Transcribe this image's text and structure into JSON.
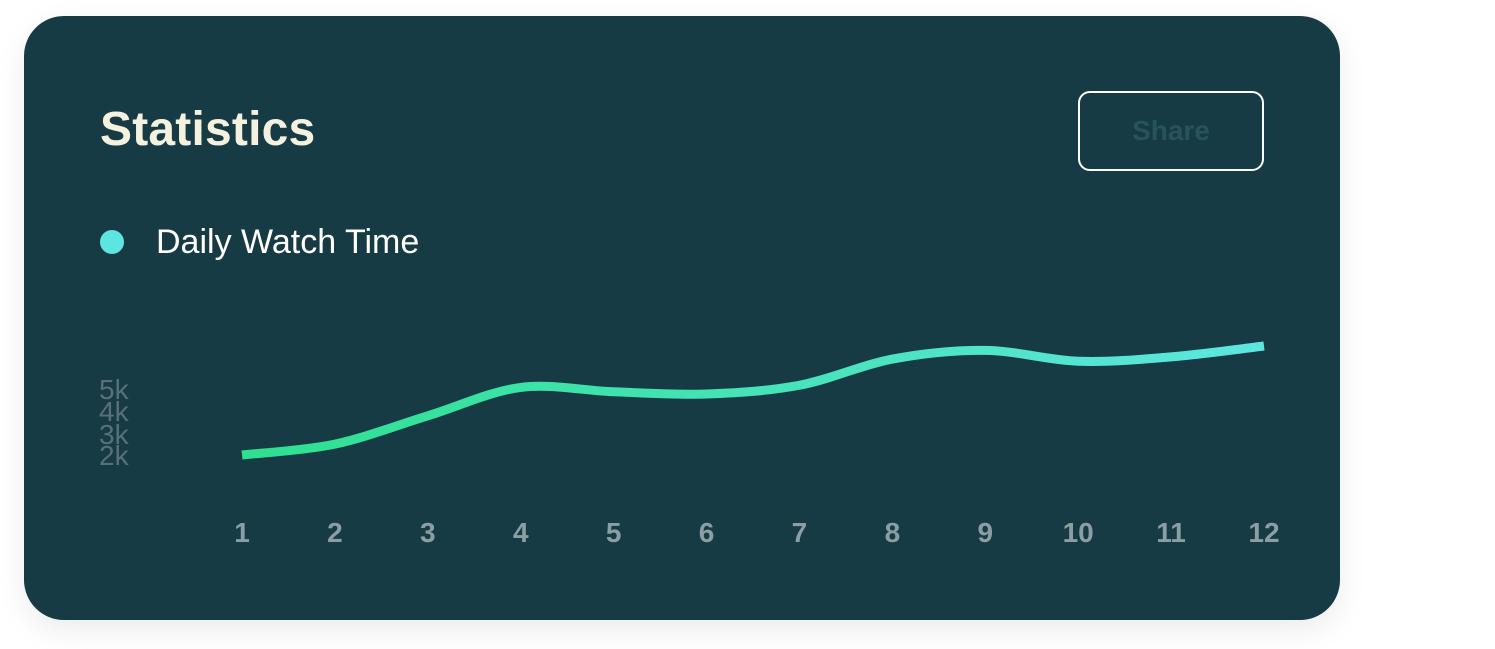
{
  "card": {
    "title": "Statistics",
    "share_label": "Share"
  },
  "colors": {
    "card_background": "#173b44",
    "title": "#f4f1df",
    "line_start": "#2ee08f",
    "line_end": "#5de6e0",
    "tick_label": "#8a9ea3",
    "y_tick_label": "#58707a",
    "share_text": "#27535e"
  },
  "chart_data": {
    "type": "line",
    "x": [
      1,
      2,
      3,
      4,
      5,
      6,
      7,
      8,
      9,
      10,
      11,
      12
    ],
    "categories": [
      "1",
      "2",
      "3",
      "4",
      "5",
      "6",
      "7",
      "8",
      "9",
      "10",
      "11",
      "12"
    ],
    "series": [
      {
        "name": "Daily Watch Time",
        "values": [
          2000,
          2500,
          3800,
          5100,
          4900,
          4800,
          5200,
          6400,
          6800,
          6300,
          6500,
          7000
        ]
      }
    ],
    "y_ticks": [
      "2k",
      "3k",
      "4k",
      "5k"
    ],
    "title": "",
    "xlabel": "",
    "ylabel": "",
    "ylim": [
      2000,
      7000
    ],
    "grid": false,
    "legend": "top-left"
  }
}
